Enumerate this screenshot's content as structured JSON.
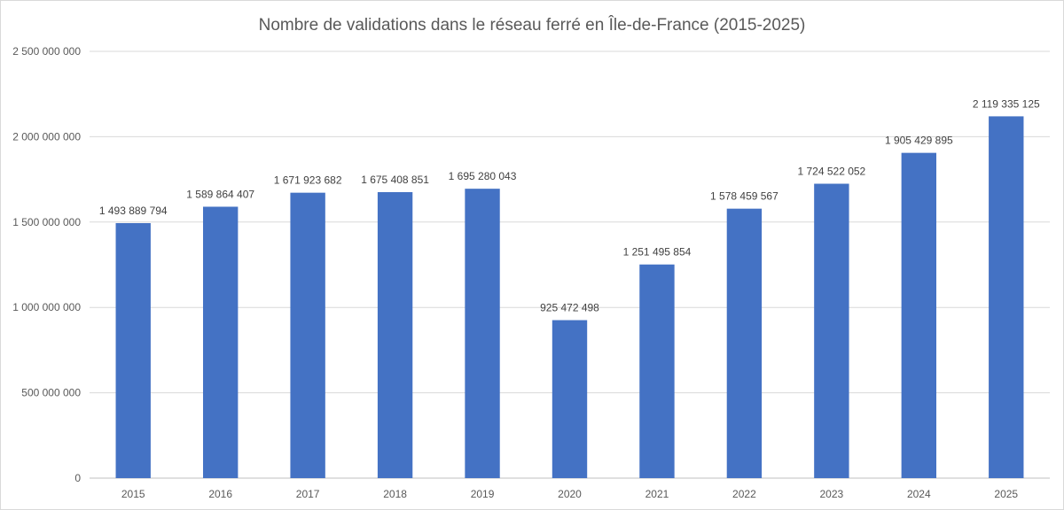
{
  "chart_data": {
    "type": "bar",
    "title": "Nombre de validations dans le réseau ferré en Île-de-France (2015-2025)",
    "xlabel": "",
    "ylabel": "",
    "categories": [
      "2015",
      "2016",
      "2017",
      "2018",
      "2019",
      "2020",
      "2021",
      "2022",
      "2023",
      "2024",
      "2025"
    ],
    "values": [
      1493889794,
      1589864407,
      1671923682,
      1675408851,
      1695280043,
      925472498,
      1251495854,
      1578459567,
      1724522052,
      1905429895,
      2119335125
    ],
    "data_labels": [
      "1 493 889 794",
      "1 589 864 407",
      "1 671 923 682",
      "1 675 408 851",
      "1 695 280 043",
      "925 472 498",
      "1 251 495 854",
      "1 578 459 567",
      "1 724 522 052",
      "1 905 429 895",
      "2 119 335 125"
    ],
    "ylim": [
      0,
      2500000000
    ],
    "yticks": [
      0,
      500000000,
      1000000000,
      1500000000,
      2000000000,
      2500000000
    ],
    "ytick_labels": [
      "0",
      "500 000 000",
      "1 000 000 000",
      "1 500 000 000",
      "2 000 000 000",
      "2 500 000 000"
    ],
    "grid": true,
    "legend": "none",
    "bar_color": "#4472C4"
  }
}
